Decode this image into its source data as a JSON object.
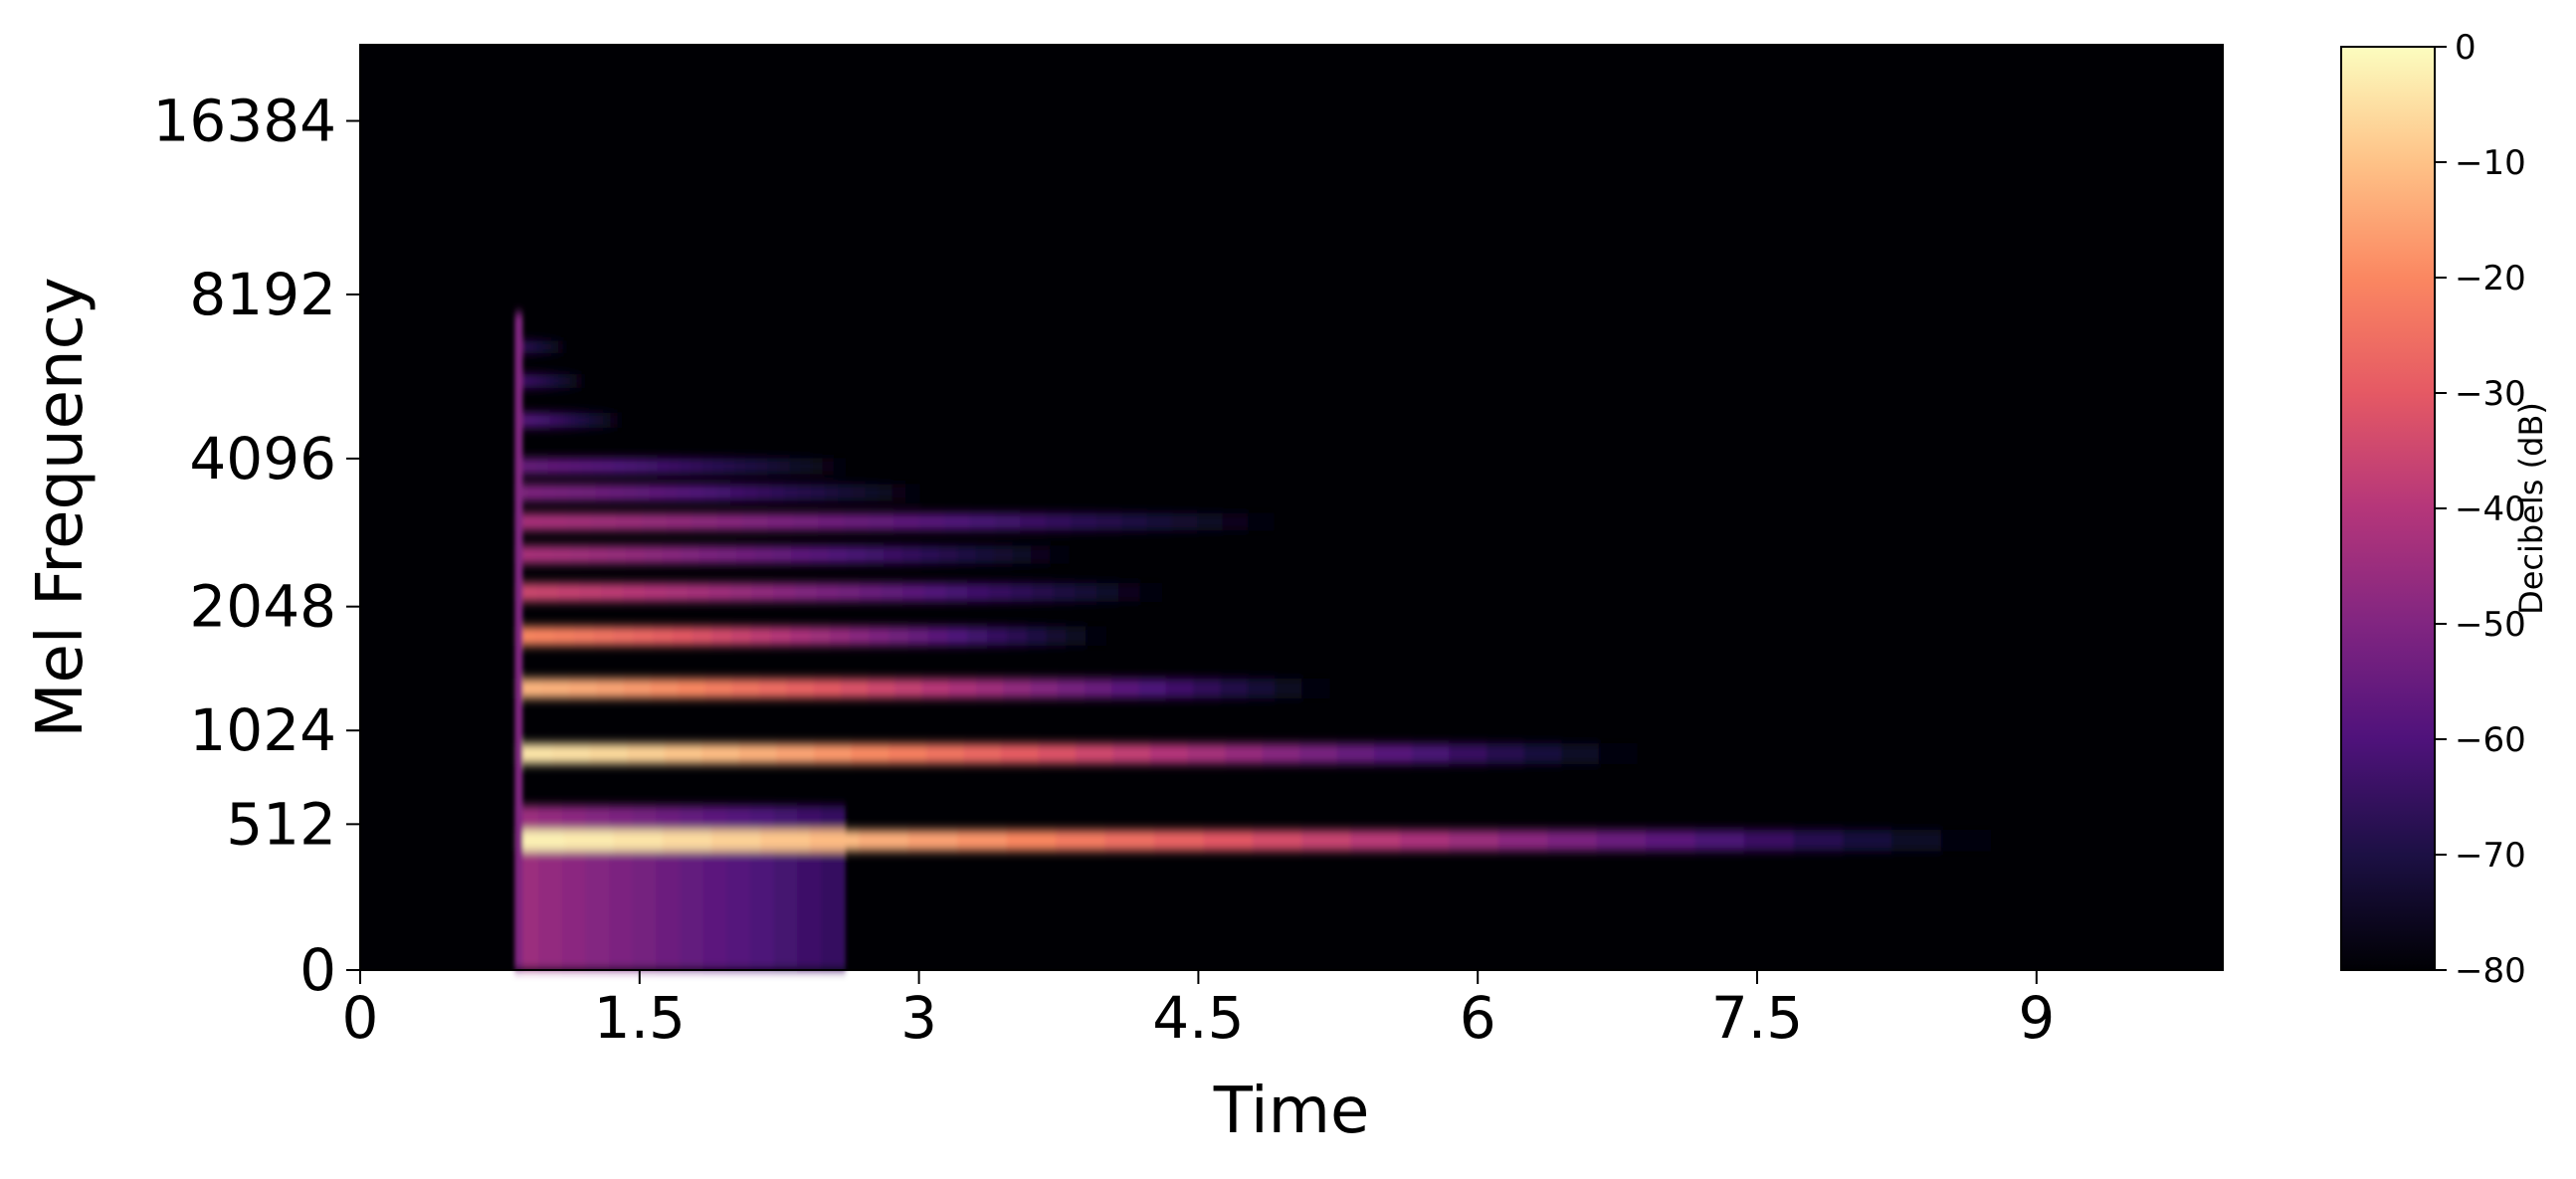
{
  "chart_data": {
    "type": "heatmap",
    "title": "",
    "xlabel": "Time",
    "ylabel": "Mel Frequency",
    "xlim": [
      0,
      10.0
    ],
    "x_ticks": [
      0,
      1.5,
      3,
      4.5,
      6,
      7.5,
      9
    ],
    "x_tick_labels": [
      "0",
      "1.5",
      "3",
      "4.5",
      "6",
      "7.5",
      "9"
    ],
    "y_scale": "mel",
    "ylim": [
      0,
      22050
    ],
    "y_ticks": [
      0,
      512,
      1024,
      2048,
      4096,
      8192,
      16384
    ],
    "y_tick_labels": [
      "0",
      "512",
      "1024",
      "2048",
      "4096",
      "8192",
      "16384"
    ],
    "colormap": "magma",
    "colorbar": {
      "label": "Decibels (dB)",
      "range": [
        -80,
        0
      ],
      "ticks": [
        0,
        -10,
        -20,
        -30,
        -40,
        -50,
        -60,
        -70,
        -80
      ],
      "tick_labels": [
        "0",
        "−10",
        "−20",
        "−30",
        "−40",
        "−50",
        "−60",
        "−70",
        "−80"
      ]
    },
    "onset_time": 0.83,
    "background_db": -80,
    "broadband_floor": {
      "freq_max": 600,
      "db_start": -45,
      "db_end": -65,
      "t_end": 2.6
    },
    "harmonic_bands": [
      {
        "freq": 440,
        "db_peak": -2,
        "t_end": 8.75
      },
      {
        "freq": 880,
        "db_peak": -4,
        "t_end": 6.85
      },
      {
        "freq": 1320,
        "db_peak": -12,
        "t_end": 5.2
      },
      {
        "freq": 1760,
        "db_peak": -20,
        "t_end": 4.0
      },
      {
        "freq": 2200,
        "db_peak": -35,
        "t_end": 4.3
      },
      {
        "freq": 2640,
        "db_peak": -42,
        "t_end": 3.8
      },
      {
        "freq": 3080,
        "db_peak": -42,
        "t_end": 4.9
      },
      {
        "freq": 3520,
        "db_peak": -50,
        "t_end": 3.0
      },
      {
        "freq": 3960,
        "db_peak": -55,
        "t_end": 2.6
      },
      {
        "freq": 4840,
        "db_peak": -58,
        "t_end": 1.4
      },
      {
        "freq": 5720,
        "db_peak": -62,
        "t_end": 1.2
      },
      {
        "freq": 6600,
        "db_peak": -65,
        "t_end": 1.1
      }
    ]
  }
}
